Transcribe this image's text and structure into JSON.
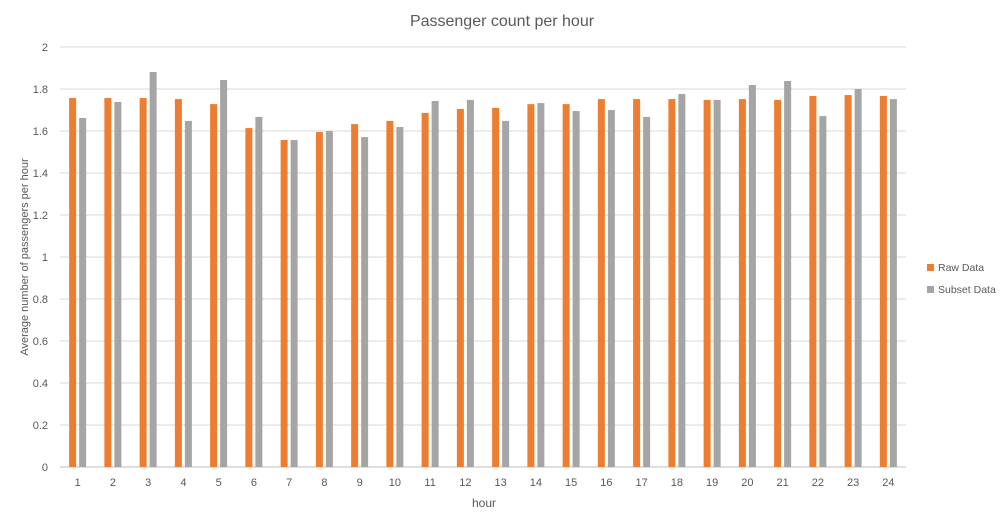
{
  "chart_data": {
    "type": "bar",
    "title": "Passenger count per hour",
    "xlabel": "hour",
    "ylabel": "Average number of passengers per hour",
    "ylim": [
      0,
      2
    ],
    "yticks": [
      "0",
      "0.2",
      "0.4",
      "0.6",
      "0.8",
      "1",
      "1.2",
      "1.4",
      "1.6",
      "1.8",
      "2"
    ],
    "grid": true,
    "legend_position": "right",
    "categories": [
      "1",
      "2",
      "3",
      "4",
      "5",
      "6",
      "7",
      "8",
      "9",
      "10",
      "11",
      "12",
      "13",
      "14",
      "15",
      "16",
      "17",
      "18",
      "19",
      "20",
      "21",
      "22",
      "23",
      "24"
    ],
    "series": [
      {
        "name": "Raw Data",
        "color": "#ED7D31",
        "values": [
          1.757,
          1.757,
          1.757,
          1.752,
          1.728,
          1.614,
          1.557,
          1.595,
          1.633,
          1.648,
          1.686,
          1.705,
          1.71,
          1.728,
          1.728,
          1.752,
          1.752,
          1.752,
          1.748,
          1.752,
          1.748,
          1.767,
          1.771,
          1.767
        ]
      },
      {
        "name": "Subset Data",
        "color": "#A5A5A5",
        "values": [
          1.662,
          1.738,
          1.881,
          1.648,
          1.843,
          1.667,
          1.557,
          1.6,
          1.571,
          1.619,
          1.743,
          1.748,
          1.648,
          1.733,
          1.695,
          1.7,
          1.667,
          1.776,
          1.748,
          1.819,
          1.838,
          1.671,
          1.8,
          1.752
        ]
      }
    ]
  }
}
